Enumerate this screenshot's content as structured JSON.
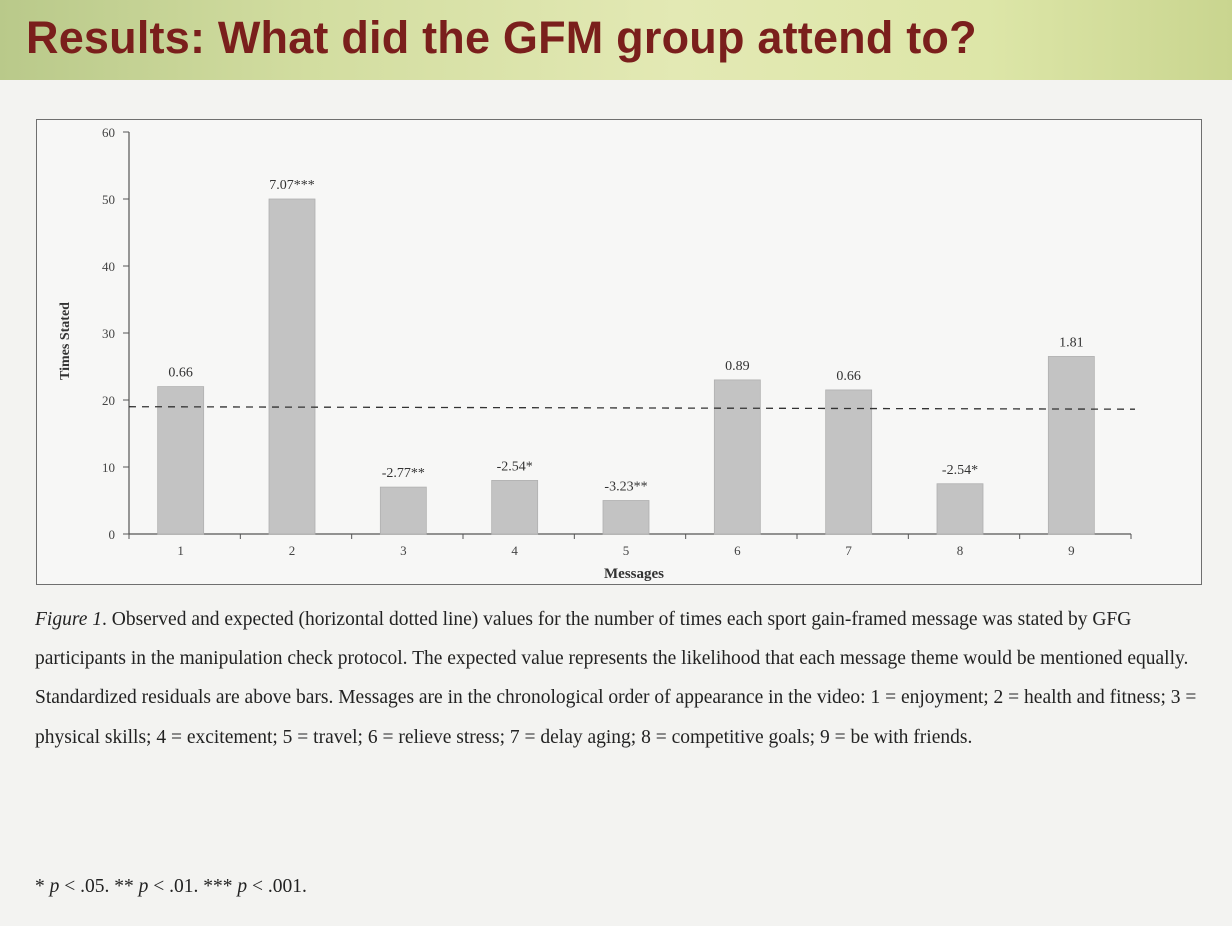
{
  "slide": {
    "title": "Results: What did the GFM group attend to?"
  },
  "chart_data": {
    "type": "bar",
    "title": "",
    "xlabel": "Messages",
    "ylabel": "Times Stated",
    "ylim": [
      0,
      60
    ],
    "yticks": [
      "0",
      "10",
      "20",
      "30",
      "40",
      "50",
      "60"
    ],
    "categories": [
      "1",
      "2",
      "3",
      "4",
      "5",
      "6",
      "7",
      "8",
      "9"
    ],
    "values": [
      22,
      50,
      7,
      8,
      5,
      23,
      21.5,
      7.5,
      26.5
    ],
    "bar_labels": [
      "0.66",
      "7.07***",
      "-2.77**",
      "-2.54*",
      "-3.23**",
      "0.89",
      "0.66",
      "-2.54*",
      "1.81"
    ],
    "expected_value": 19,
    "expected_line_style": "dashed",
    "grid": false,
    "bar_color": "#c3c3c3"
  },
  "caption": {
    "figure_label": "Figure 1",
    "text": ". Observed and expected (horizontal dotted line) values for the number of times each sport gain-framed message was stated by GFG participants in the manipulation check protocol. The expected value represents the likelihood that each message theme would be mentioned equally. Standardized residuals are above bars. Messages are in the chronological order of appearance in the video: 1 = enjoyment; 2 = health and fitness; 3 = physical skills; 4 = excitement; 5 = travel; 6 = relieve stress; 7 = delay aging; 8 = competitive goals; 9 = be with friends."
  },
  "significance": {
    "s1": "* ",
    "p1": "p",
    "t1": " < .05. ** ",
    "p2": "p",
    "t2": " < .01. *** ",
    "p3": "p",
    "t3": " <  .001."
  }
}
